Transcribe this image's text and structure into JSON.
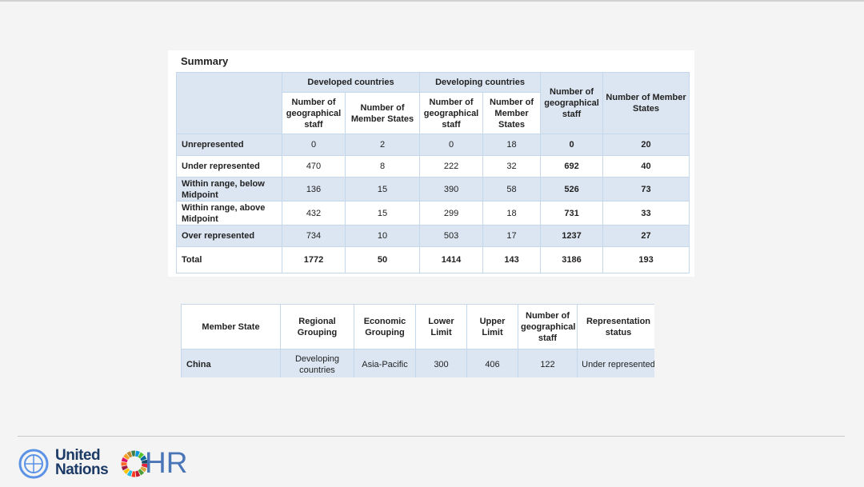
{
  "summary": {
    "title": "Summary",
    "group_headers": [
      "Developed countries",
      "Developing countries"
    ],
    "sub_headers": [
      "Number of geographical staff",
      "Number of Member States",
      "Number of geographical staff",
      "Number of Member States"
    ],
    "total_headers": [
      "Number of geographical staff",
      "Number of Member States"
    ],
    "rows": [
      [
        "Unrepresented",
        0,
        2,
        0,
        18,
        0,
        20
      ],
      [
        "Under represented",
        470,
        8,
        222,
        32,
        692,
        40
      ],
      [
        "Within range, below Midpoint",
        136,
        15,
        390,
        58,
        526,
        73
      ],
      [
        "Within range, above Midpoint",
        432,
        15,
        299,
        18,
        731,
        33
      ],
      [
        "Over represented",
        734,
        10,
        503,
        17,
        1237,
        27
      ],
      [
        "Total",
        1772,
        50,
        1414,
        143,
        3186,
        193
      ]
    ]
  },
  "detail": {
    "headers": [
      "Member State",
      "Regional Grouping",
      "Economic Grouping",
      "Lower Limit",
      "Upper Limit",
      "Number of geographical staff",
      "Representation status"
    ],
    "rows": [
      [
        "China",
        "Developing countries",
        "Asia-Pacific",
        300,
        406,
        122,
        "Under represented"
      ]
    ]
  },
  "footer": {
    "org": "United Nations",
    "unit": "HR"
  }
}
